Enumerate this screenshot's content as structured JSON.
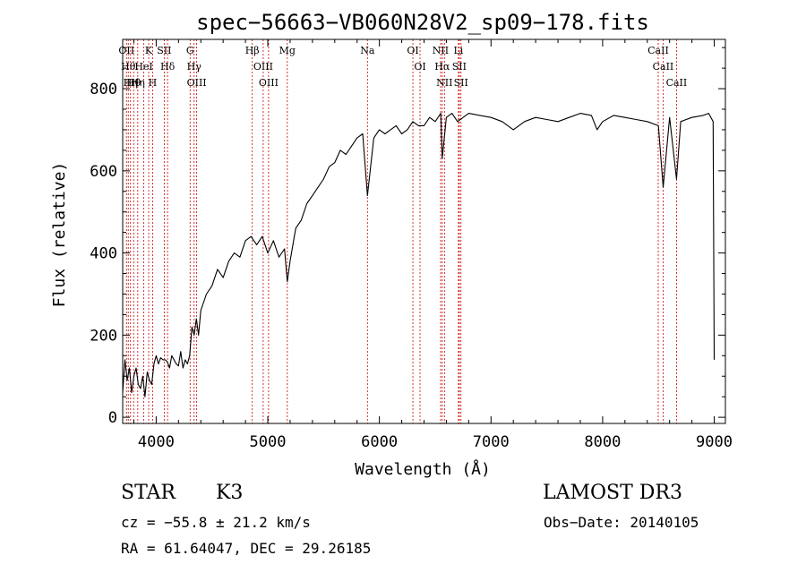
{
  "chart_data": {
    "type": "line",
    "title": "spec−56663−VB060N28V2_sp09−178.fits",
    "xlabel": "Wavelength (Å)",
    "ylabel": "Flux (relative)",
    "xlim": [
      3700,
      9100
    ],
    "ylim": [
      -15,
      920
    ],
    "x_ticks": [
      4000,
      5000,
      6000,
      7000,
      8000,
      9000
    ],
    "y_ticks": [
      0,
      200,
      400,
      600,
      800
    ],
    "x_tick_labels": [
      "4000",
      "5000",
      "6000",
      "7000",
      "8000",
      "9000"
    ],
    "y_tick_labels": [
      "0",
      "200",
      "400",
      "600",
      "800"
    ],
    "line_color": "#000000",
    "marker_color": "#cc0000",
    "series": [
      {
        "x": [
          3700,
          3720,
          3740,
          3760,
          3780,
          3800,
          3820,
          3840,
          3860,
          3880,
          3900,
          3920,
          3940,
          3960,
          3980,
          4000,
          4020,
          4040,
          4060,
          4080,
          4100,
          4120,
          4140,
          4160,
          4180,
          4200,
          4220,
          4240,
          4260,
          4280,
          4300,
          4320,
          4340,
          4360,
          4380,
          4400,
          4450,
          4500,
          4550,
          4600,
          4650,
          4700,
          4750,
          4800,
          4850,
          4900,
          4950,
          5000,
          5050,
          5100,
          5150,
          5175,
          5200,
          5250,
          5300,
          5350,
          5400,
          5450,
          5500,
          5550,
          5600,
          5650,
          5700,
          5750,
          5800,
          5850,
          5893,
          5950,
          6000,
          6050,
          6100,
          6150,
          6200,
          6250,
          6300,
          6350,
          6400,
          6450,
          6500,
          6550,
          6563,
          6600,
          6650,
          6700,
          6750,
          6800,
          6900,
          7000,
          7100,
          7200,
          7300,
          7400,
          7500,
          7600,
          7700,
          7800,
          7900,
          7950,
          8000,
          8100,
          8200,
          8300,
          8400,
          8500,
          8542,
          8600,
          8662,
          8700,
          8800,
          8900,
          8950,
          8990,
          9000
        ],
        "y": [
          60,
          140,
          90,
          120,
          60,
          100,
          120,
          80,
          70,
          100,
          50,
          110,
          90,
          80,
          130,
          150,
          130,
          145,
          140,
          140,
          135,
          120,
          150,
          140,
          130,
          125,
          160,
          120,
          140,
          130,
          150,
          220,
          200,
          240,
          200,
          260,
          300,
          320,
          360,
          340,
          380,
          400,
          390,
          430,
          440,
          420,
          440,
          400,
          430,
          390,
          410,
          330,
          380,
          460,
          480,
          520,
          540,
          560,
          580,
          610,
          620,
          650,
          640,
          660,
          680,
          690,
          540,
          680,
          700,
          690,
          700,
          710,
          690,
          700,
          720,
          710,
          710,
          730,
          720,
          740,
          630,
          730,
          740,
          720,
          730,
          740,
          735,
          730,
          720,
          700,
          720,
          730,
          725,
          720,
          730,
          740,
          735,
          700,
          720,
          735,
          730,
          725,
          720,
          710,
          560,
          730,
          580,
          720,
          730,
          735,
          740,
          720,
          140
        ]
      }
    ],
    "line_markers": [
      {
        "x": 3734,
        "label": "OII"
      },
      {
        "x": 3750,
        "label": "Hθ"
      },
      {
        "x": 3770,
        "label": "Hη"
      },
      {
        "x": 3798,
        "label": "Hθ"
      },
      {
        "x": 3835,
        "label": "Hη"
      },
      {
        "x": 3889,
        "label": "HeI"
      },
      {
        "x": 3933,
        "label": "K"
      },
      {
        "x": 3968,
        "label": "H"
      },
      {
        "x": 4072,
        "label": "SII"
      },
      {
        "x": 4102,
        "label": "Hδ"
      },
      {
        "x": 4304,
        "label": "G"
      },
      {
        "x": 4340,
        "label": "Hγ"
      },
      {
        "x": 4363,
        "label": "OIII"
      },
      {
        "x": 4861,
        "label": "Hβ"
      },
      {
        "x": 4959,
        "label": "OIII"
      },
      {
        "x": 5007,
        "label": "OIII"
      },
      {
        "x": 5175,
        "label": "Mg"
      },
      {
        "x": 5893,
        "label": "Na"
      },
      {
        "x": 6300,
        "label": "OI"
      },
      {
        "x": 6364,
        "label": "OI"
      },
      {
        "x": 6548,
        "label": "NII"
      },
      {
        "x": 6563,
        "label": "Hα"
      },
      {
        "x": 6583,
        "label": "NII"
      },
      {
        "x": 6708,
        "label": "Li"
      },
      {
        "x": 6716,
        "label": "SII"
      },
      {
        "x": 6731,
        "label": "SII"
      },
      {
        "x": 8498,
        "label": "CaII"
      },
      {
        "x": 8542,
        "label": "CaII"
      },
      {
        "x": 8662,
        "label": "CaII"
      }
    ]
  },
  "info": {
    "class": "STAR",
    "subclass": "K3",
    "survey": "LAMOST DR3",
    "cz": "cz = −55.8 ± 21.2 km/s",
    "obs_date": "Obs−Date: 20140105",
    "coords": "RA =  61.64047, DEC =  29.26185"
  }
}
